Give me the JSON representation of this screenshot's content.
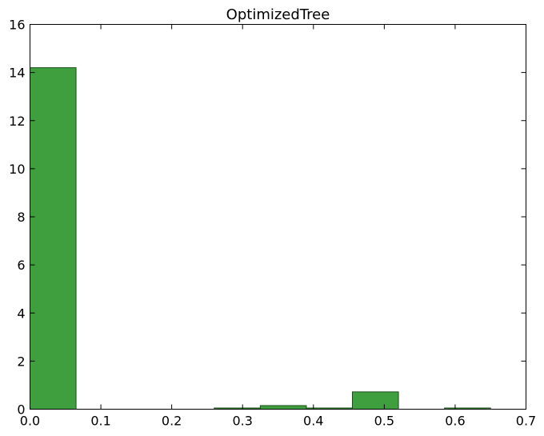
{
  "chart_data": {
    "type": "bar",
    "title": "OptimizedTree",
    "xlabel": "",
    "ylabel": "",
    "xlim": [
      0.0,
      0.7
    ],
    "ylim": [
      0,
      16
    ],
    "x_ticks": [
      0.0,
      0.1,
      0.2,
      0.3,
      0.4,
      0.5,
      0.6,
      0.7
    ],
    "x_tick_labels": [
      "0.0",
      "0.1",
      "0.2",
      "0.3",
      "0.4",
      "0.5",
      "0.6",
      "0.7"
    ],
    "y_ticks": [
      0,
      2,
      4,
      6,
      8,
      10,
      12,
      14,
      16
    ],
    "y_tick_labels": [
      "0",
      "2",
      "4",
      "6",
      "8",
      "10",
      "12",
      "14",
      "16"
    ],
    "bar_color": "#3f9f3f",
    "bar_edge_color": "#1a4d1a",
    "grid": false,
    "bins": [
      {
        "x0": 0.0,
        "x1": 0.065,
        "value": 14.2
      },
      {
        "x0": 0.065,
        "x1": 0.13,
        "value": 0
      },
      {
        "x0": 0.13,
        "x1": 0.195,
        "value": 0
      },
      {
        "x0": 0.195,
        "x1": 0.26,
        "value": 0
      },
      {
        "x0": 0.26,
        "x1": 0.325,
        "value": 0.05
      },
      {
        "x0": 0.325,
        "x1": 0.39,
        "value": 0.15
      },
      {
        "x0": 0.39,
        "x1": 0.455,
        "value": 0.05
      },
      {
        "x0": 0.455,
        "x1": 0.52,
        "value": 0.72
      },
      {
        "x0": 0.52,
        "x1": 0.585,
        "value": 0
      },
      {
        "x0": 0.585,
        "x1": 0.65,
        "value": 0.05
      }
    ]
  }
}
